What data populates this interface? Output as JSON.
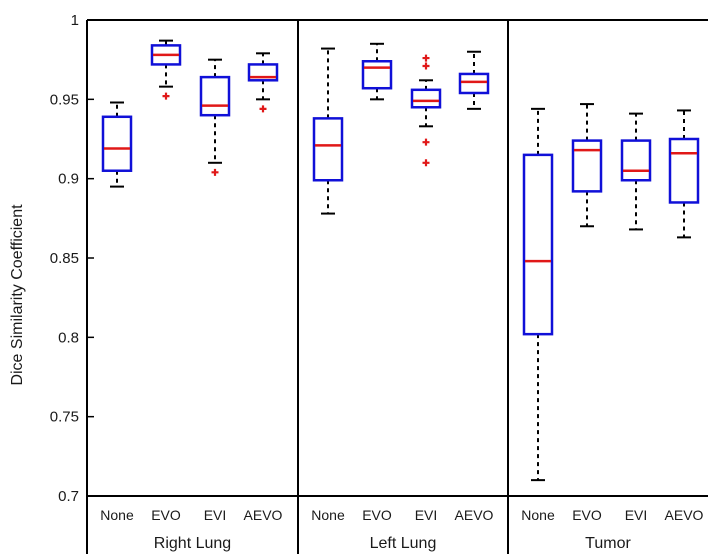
{
  "chart_data": {
    "type": "box",
    "ylabel": "Dice Similarity Coefficient",
    "xlabel": "",
    "title": "",
    "ylim": [
      0.7,
      1.0
    ],
    "yticks": [
      0.7,
      0.75,
      0.8,
      0.85,
      0.9,
      0.95,
      1
    ],
    "ytick_labels": [
      "0.7",
      "0.75",
      "0.8",
      "0.85",
      "0.9",
      "0.95",
      "1"
    ],
    "grid": false,
    "colors": {
      "box": "#1010d8",
      "median": "#e01818",
      "whisker": "#000000",
      "outlier": "#e01818"
    },
    "groups": [
      {
        "name": "Right Lung",
        "boxes": [
          {
            "category": "None",
            "whislo": 0.895,
            "q1": 0.905,
            "med": 0.919,
            "q3": 0.939,
            "whishi": 0.948,
            "fliers": []
          },
          {
            "category": "EVO",
            "whislo": 0.958,
            "q1": 0.972,
            "med": 0.978,
            "q3": 0.984,
            "whishi": 0.987,
            "fliers": [
              0.952
            ]
          },
          {
            "category": "EVI",
            "whislo": 0.91,
            "q1": 0.94,
            "med": 0.946,
            "q3": 0.964,
            "whishi": 0.975,
            "fliers": [
              0.904
            ]
          },
          {
            "category": "AEVO",
            "whislo": 0.95,
            "q1": 0.962,
            "med": 0.964,
            "q3": 0.972,
            "whishi": 0.979,
            "fliers": [
              0.944
            ]
          }
        ]
      },
      {
        "name": "Left Lung",
        "boxes": [
          {
            "category": "None",
            "whislo": 0.878,
            "q1": 0.899,
            "med": 0.921,
            "q3": 0.938,
            "whishi": 0.982,
            "fliers": []
          },
          {
            "category": "EVO",
            "whislo": 0.95,
            "q1": 0.957,
            "med": 0.97,
            "q3": 0.974,
            "whishi": 0.985,
            "fliers": []
          },
          {
            "category": "EVI",
            "whislo": 0.933,
            "q1": 0.945,
            "med": 0.949,
            "q3": 0.956,
            "whishi": 0.962,
            "fliers": [
              0.91,
              0.923,
              0.971,
              0.976
            ]
          },
          {
            "category": "AEVO",
            "whislo": 0.944,
            "q1": 0.954,
            "med": 0.961,
            "q3": 0.966,
            "whishi": 0.98,
            "fliers": []
          }
        ]
      },
      {
        "name": "Tumor",
        "boxes": [
          {
            "category": "None",
            "whislo": 0.71,
            "q1": 0.802,
            "med": 0.848,
            "q3": 0.915,
            "whishi": 0.944,
            "fliers": []
          },
          {
            "category": "EVO",
            "whislo": 0.87,
            "q1": 0.892,
            "med": 0.918,
            "q3": 0.924,
            "whishi": 0.947,
            "fliers": []
          },
          {
            "category": "EVI",
            "whislo": 0.868,
            "q1": 0.899,
            "med": 0.905,
            "q3": 0.924,
            "whishi": 0.941,
            "fliers": []
          },
          {
            "category": "AEVO",
            "whislo": 0.863,
            "q1": 0.885,
            "med": 0.916,
            "q3": 0.925,
            "whishi": 0.943,
            "fliers": []
          }
        ]
      }
    ]
  }
}
